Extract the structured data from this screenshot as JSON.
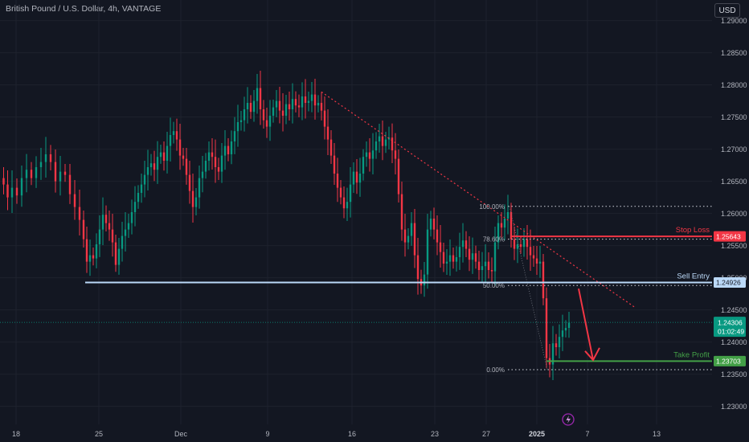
{
  "chart_data": {
    "type": "candlestick",
    "title": "British Pound / U.S. Dollar, 4h, VANTAGE",
    "currency": "USD",
    "y_ticks": [
      "1.29000",
      "1.28500",
      "1.28000",
      "1.27500",
      "1.27000",
      "1.26500",
      "1.26000",
      "1.25500",
      "1.25000",
      "1.24500",
      "1.24000",
      "1.23500",
      "1.23000"
    ],
    "x_ticks": [
      "18",
      "25",
      "Dec",
      "9",
      "16",
      "23",
      "27",
      "2025",
      "7",
      "13"
    ],
    "ylim": [
      1.2272,
      1.2932
    ],
    "levels": [
      {
        "name": "Stop Loss",
        "value": 1.25643,
        "label": "1.25643",
        "color": "#f23645"
      },
      {
        "name": "Sell Entry",
        "value": 1.24926,
        "label": "1.24926",
        "color": "#bbd9f8"
      },
      {
        "name": "Take Profit",
        "value": 1.23703,
        "label": "1.23703",
        "color": "#43a047"
      }
    ],
    "current_price": {
      "label": "1.24306",
      "countdown": "01:02:49",
      "color": "#089981",
      "value": 1.24306
    },
    "fib_levels": [
      {
        "label": "100.00%",
        "value": 1.2611
      },
      {
        "label": "78.60%",
        "value": 1.256
      },
      {
        "label": "50.00%",
        "value": 1.2488
      },
      {
        "label": "0.00%",
        "value": 1.2357
      }
    ],
    "trendline": {
      "from": [
        1.2789
      ],
      "to": [
        1.2454
      ]
    },
    "close_path": [
      [
        0,
        1.2655
      ],
      [
        5,
        1.2645
      ],
      [
        10,
        1.2625
      ],
      [
        16,
        1.264
      ],
      [
        22,
        1.2628
      ],
      [
        28,
        1.2655
      ],
      [
        34,
        1.2668
      ],
      [
        40,
        1.2655
      ],
      [
        46,
        1.2672
      ],
      [
        52,
        1.268
      ],
      [
        58,
        1.2692
      ],
      [
        64,
        1.268
      ],
      [
        70,
        1.265
      ],
      [
        76,
        1.2665
      ],
      [
        82,
        1.266
      ],
      [
        88,
        1.263
      ],
      [
        94,
        1.261
      ],
      [
        100,
        1.259
      ],
      [
        104,
        1.256
      ],
      [
        108,
        1.2525
      ],
      [
        112,
        1.2535
      ],
      [
        116,
        1.253
      ],
      [
        120,
        1.2552
      ],
      [
        124,
        1.2575
      ],
      [
        128,
        1.2598
      ],
      [
        132,
        1.2585
      ],
      [
        136,
        1.2575
      ],
      [
        140,
        1.2555
      ],
      [
        144,
        1.252
      ],
      [
        148,
        1.2545
      ],
      [
        152,
        1.2565
      ],
      [
        156,
        1.2575
      ],
      [
        160,
        1.2585
      ],
      [
        164,
        1.2602
      ],
      [
        168,
        1.2618
      ],
      [
        172,
        1.2632
      ],
      [
        176,
        1.2645
      ],
      [
        180,
        1.266
      ],
      [
        184,
        1.2672
      ],
      [
        188,
        1.2678
      ],
      [
        192,
        1.2668
      ],
      [
        196,
        1.2688
      ],
      [
        200,
        1.2695
      ],
      [
        204,
        1.2682
      ],
      [
        208,
        1.2705
      ],
      [
        212,
        1.2722
      ],
      [
        216,
        1.2728
      ],
      [
        220,
        1.2715
      ],
      [
        224,
        1.269
      ],
      [
        228,
        1.2685
      ],
      [
        232,
        1.266
      ],
      [
        236,
        1.2635
      ],
      [
        240,
        1.261
      ],
      [
        244,
        1.2625
      ],
      [
        248,
        1.2655
      ],
      [
        252,
        1.2665
      ],
      [
        256,
        1.2682
      ],
      [
        260,
        1.2695
      ],
      [
        264,
        1.2688
      ],
      [
        268,
        1.2672
      ],
      [
        272,
        1.2665
      ],
      [
        276,
        1.269
      ],
      [
        280,
        1.2705
      ],
      [
        284,
        1.2692
      ],
      [
        288,
        1.2712
      ],
      [
        292,
        1.2728
      ],
      [
        296,
        1.2742
      ],
      [
        300,
        1.2745
      ],
      [
        304,
        1.2762
      ],
      [
        308,
        1.2772
      ],
      [
        312,
        1.2758
      ],
      [
        316,
        1.2775
      ],
      [
        320,
        1.2795
      ],
      [
        324,
        1.2762
      ],
      [
        328,
        1.2745
      ],
      [
        332,
        1.2735
      ],
      [
        336,
        1.2752
      ],
      [
        340,
        1.2765
      ],
      [
        344,
        1.2775
      ],
      [
        348,
        1.276
      ],
      [
        352,
        1.2752
      ],
      [
        356,
        1.277
      ],
      [
        360,
        1.2762
      ],
      [
        364,
        1.2778
      ],
      [
        368,
        1.2768
      ],
      [
        372,
        1.2765
      ],
      [
        376,
        1.2782
      ],
      [
        380,
        1.2772
      ],
      [
        384,
        1.2775
      ],
      [
        388,
        1.2785
      ],
      [
        392,
        1.2768
      ],
      [
        396,
        1.2772
      ],
      [
        400,
        1.276
      ],
      [
        404,
        1.2735
      ],
      [
        408,
        1.2715
      ],
      [
        412,
        1.269
      ],
      [
        416,
        1.2662
      ],
      [
        420,
        1.264
      ],
      [
        424,
        1.2625
      ],
      [
        428,
        1.2608
      ],
      [
        432,
        1.2618
      ],
      [
        436,
        1.2645
      ],
      [
        440,
        1.2665
      ],
      [
        444,
        1.2648
      ],
      [
        448,
        1.2662
      ],
      [
        452,
        1.2688
      ],
      [
        456,
        1.2695
      ],
      [
        460,
        1.2685
      ],
      [
        464,
        1.2698
      ],
      [
        468,
        1.2712
      ],
      [
        472,
        1.272
      ],
      [
        476,
        1.2705
      ],
      [
        480,
        1.2715
      ],
      [
        484,
        1.2718
      ],
      [
        488,
        1.2698
      ],
      [
        492,
        1.2685
      ],
      [
        496,
        1.263
      ],
      [
        500,
        1.2575
      ],
      [
        504,
        1.2555
      ],
      [
        508,
        1.2565
      ],
      [
        512,
        1.2585
      ],
      [
        516,
        1.2535
      ],
      [
        520,
        1.2498
      ],
      [
        524,
        1.2488
      ],
      [
        528,
        1.2505
      ],
      [
        532,
        1.2575
      ],
      [
        536,
        1.2592
      ],
      [
        540,
        1.2575
      ],
      [
        544,
        1.2555
      ],
      [
        548,
        1.254
      ],
      [
        552,
        1.2522
      ],
      [
        556,
        1.2525
      ],
      [
        560,
        1.2535
      ],
      [
        564,
        1.2525
      ],
      [
        568,
        1.2532
      ],
      [
        572,
        1.2548
      ],
      [
        576,
        1.2558
      ],
      [
        580,
        1.2545
      ],
      [
        584,
        1.2528
      ],
      [
        588,
        1.2538
      ],
      [
        592,
        1.2525
      ],
      [
        596,
        1.2512
      ],
      [
        600,
        1.2518
      ],
      [
        604,
        1.2525
      ],
      [
        608,
        1.2512
      ],
      [
        612,
        1.251
      ],
      [
        616,
        1.2555
      ],
      [
        620,
        1.2585
      ],
      [
        624,
        1.2578
      ],
      [
        628,
        1.2592
      ],
      [
        632,
        1.2602
      ],
      [
        636,
        1.256
      ],
      [
        640,
        1.2545
      ],
      [
        644,
        1.2552
      ],
      [
        648,
        1.2548
      ],
      [
        652,
        1.256
      ],
      [
        656,
        1.2548
      ],
      [
        660,
        1.2535
      ],
      [
        664,
        1.253
      ],
      [
        668,
        1.2522
      ],
      [
        672,
        1.2525
      ],
      [
        676,
        1.2468
      ],
      [
        680,
        1.2375
      ],
      [
        684,
        1.2365
      ],
      [
        688,
        1.2398
      ],
      [
        692,
        1.2392
      ],
      [
        696,
        1.2408
      ],
      [
        700,
        1.2418
      ],
      [
        704,
        1.2422
      ],
      [
        708,
        1.243
      ]
    ]
  },
  "chart_style": {
    "bull_color": "#089981",
    "bear_color": "#f23645",
    "grid_color": "#1e222d",
    "projection_arrow_color": "#f23645"
  }
}
